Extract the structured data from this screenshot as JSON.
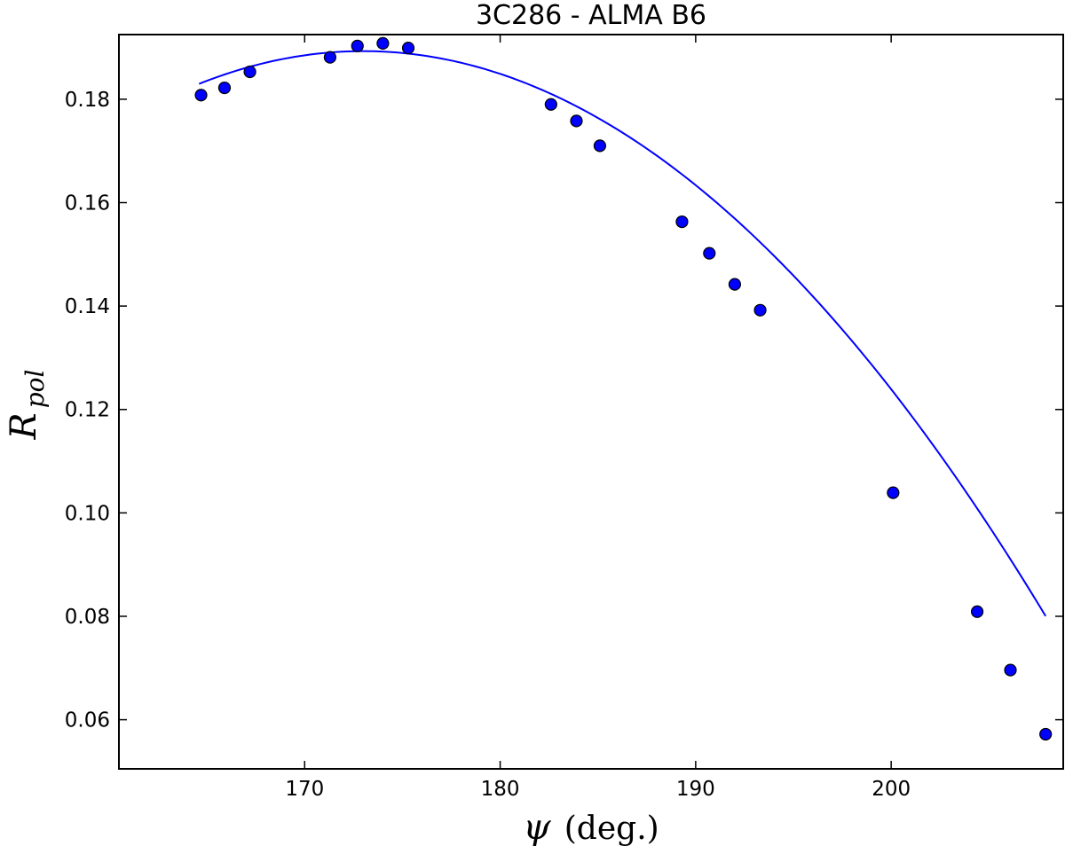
{
  "chart_data": {
    "type": "scatter",
    "title": "3C286 - ALMA B6",
    "xlabel": {
      "symbol": "ψ",
      "text": "(deg.)"
    },
    "ylabel": {
      "base": "R",
      "subscript": "pol"
    },
    "xlim": [
      160.5,
      208.8
    ],
    "ylim": [
      0.0505,
      0.1925
    ],
    "xticks": [
      170,
      180,
      190,
      200
    ],
    "yticks": [
      0.06,
      0.08,
      0.1,
      0.12,
      0.14,
      0.16,
      0.18
    ],
    "ytick_labels": [
      "0.06",
      "0.08",
      "0.10",
      "0.12",
      "0.14",
      "0.16",
      "0.18"
    ],
    "grid": false,
    "colors": {
      "series": "#0000ff",
      "edge": "#000000"
    },
    "series": [
      {
        "kind": "points",
        "x": [
          164.7,
          165.9,
          167.2,
          171.3,
          172.7,
          174.0,
          175.3,
          182.6,
          183.9,
          185.1,
          189.3,
          190.7,
          192.0,
          193.3,
          200.1,
          204.4,
          206.1,
          207.9
        ],
        "y": [
          0.1808,
          0.1822,
          0.1853,
          0.1881,
          0.1903,
          0.1908,
          0.1899,
          0.179,
          0.1758,
          0.171,
          0.1563,
          0.1502,
          0.1442,
          0.1392,
          0.1039,
          0.0809,
          0.0696,
          0.0572
        ]
      },
      {
        "kind": "fit-curve",
        "x_range": [
          164.6,
          207.9
        ],
        "samples": 160,
        "poly": [
          173.0,
          0.1893,
          -8.97e-05
        ]
      }
    ]
  }
}
